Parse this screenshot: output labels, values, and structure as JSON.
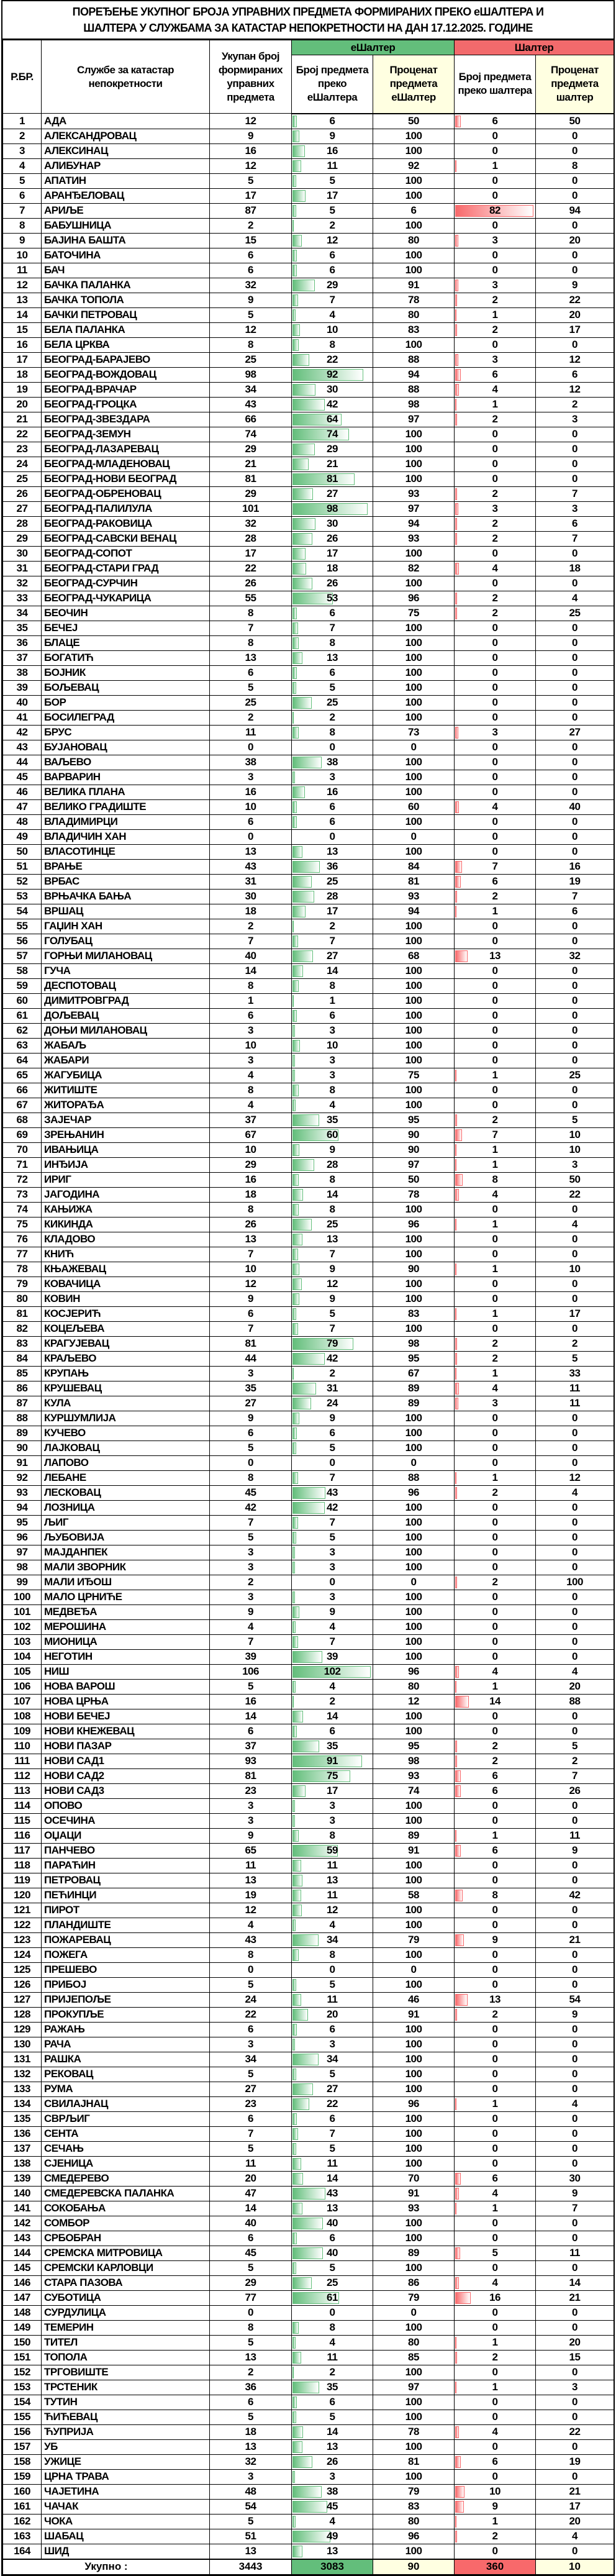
{
  "title": {
    "line1": "ПОРЕЂЕЊЕ УКУПНОГ БРОЈА УПРАВНИХ ПРЕДМЕТА ФОРМИРАНИХ ПРЕКО еШАЛТЕРА И",
    "line2": "ШАЛТЕРА У СЛУЖБАМА ЗА КАТАСТАР НЕПОКРЕТНОСТИ НА ДАН 17.12.2025. ГОДИНЕ"
  },
  "header": {
    "rb": "Р.БР.",
    "service": "Службе за катастар непокретности",
    "total": "Укупан број формираних управних предмета",
    "eshalter_group": "еШалтер",
    "shalter_group": "Шалтер",
    "e_count": "Број предмета преко еШалтера",
    "e_pct": "Проценат предмета еШалтер",
    "s_count": "Број предмета преко шалтера",
    "s_pct": "Проценат предмета шалтер"
  },
  "colors": {
    "eshalter": "#63be7b",
    "shalter": "#f8696b",
    "pct_bg": "#ffffe1"
  },
  "columns": [
    "rb",
    "service",
    "total",
    "e_count",
    "e_pct",
    "s_count",
    "s_pct"
  ],
  "rows": [
    [
      "1",
      "АДА",
      "12",
      "6",
      "50",
      "6",
      "50"
    ],
    [
      "2",
      "АЛЕКСАНДРОВАЦ",
      "9",
      "9",
      "100",
      "0",
      "0"
    ],
    [
      "3",
      "АЛЕКСИНАЦ",
      "16",
      "16",
      "100",
      "0",
      "0"
    ],
    [
      "4",
      "АЛИБУНАР",
      "12",
      "11",
      "92",
      "1",
      "8"
    ],
    [
      "5",
      "АПАТИН",
      "5",
      "5",
      "100",
      "0",
      "0"
    ],
    [
      "6",
      "АРАНЂЕЛОВАЦ",
      "17",
      "17",
      "100",
      "0",
      "0"
    ],
    [
      "7",
      "АРИЉЕ",
      "87",
      "5",
      "6",
      "82",
      "94"
    ],
    [
      "8",
      "БАБУШНИЦА",
      "2",
      "2",
      "100",
      "0",
      "0"
    ],
    [
      "9",
      "БАЈИНА БАШТА",
      "15",
      "12",
      "80",
      "3",
      "20"
    ],
    [
      "10",
      "БАТОЧИНА",
      "6",
      "6",
      "100",
      "0",
      "0"
    ],
    [
      "11",
      "БАЧ",
      "6",
      "6",
      "100",
      "0",
      "0"
    ],
    [
      "12",
      "БАЧКА ПАЛАНКА",
      "32",
      "29",
      "91",
      "3",
      "9"
    ],
    [
      "13",
      "БАЧКА ТОПОЛА",
      "9",
      "7",
      "78",
      "2",
      "22"
    ],
    [
      "14",
      "БАЧКИ ПЕТРОВАЦ",
      "5",
      "4",
      "80",
      "1",
      "20"
    ],
    [
      "15",
      "БЕЛА ПАЛАНКА",
      "12",
      "10",
      "83",
      "2",
      "17"
    ],
    [
      "16",
      "БЕЛА ЦРКВА",
      "8",
      "8",
      "100",
      "0",
      "0"
    ],
    [
      "17",
      "БЕОГРАД-БАРАЈЕВО",
      "25",
      "22",
      "88",
      "3",
      "12"
    ],
    [
      "18",
      "БЕОГРАД-ВОЖДОВАЦ",
      "98",
      "92",
      "94",
      "6",
      "6"
    ],
    [
      "19",
      "БЕОГРАД-ВРАЧАР",
      "34",
      "30",
      "88",
      "4",
      "12"
    ],
    [
      "20",
      "БЕОГРАД-ГРОЦКА",
      "43",
      "42",
      "98",
      "1",
      "2"
    ],
    [
      "21",
      "БЕОГРАД-ЗВЕЗДАРА",
      "66",
      "64",
      "97",
      "2",
      "3"
    ],
    [
      "22",
      "БЕОГРАД-ЗЕМУН",
      "74",
      "74",
      "100",
      "0",
      "0"
    ],
    [
      "23",
      "БЕОГРАД-ЛАЗАРЕВАЦ",
      "29",
      "29",
      "100",
      "0",
      "0"
    ],
    [
      "24",
      "БЕОГРАД-МЛАДЕНОВАЦ",
      "21",
      "21",
      "100",
      "0",
      "0"
    ],
    [
      "25",
      "БЕОГРАД-НОВИ БЕОГРАД",
      "81",
      "81",
      "100",
      "0",
      "0"
    ],
    [
      "26",
      "БЕОГРАД-ОБРЕНОВАЦ",
      "29",
      "27",
      "93",
      "2",
      "7"
    ],
    [
      "27",
      "БЕОГРАД-ПАЛИЛУЛА",
      "101",
      "98",
      "97",
      "3",
      "3"
    ],
    [
      "28",
      "БЕОГРАД-РАКОВИЦА",
      "32",
      "30",
      "94",
      "2",
      "6"
    ],
    [
      "29",
      "БЕОГРАД-САВСКИ ВЕНАЦ",
      "28",
      "26",
      "93",
      "2",
      "7"
    ],
    [
      "30",
      "БЕОГРАД-СОПОТ",
      "17",
      "17",
      "100",
      "0",
      "0"
    ],
    [
      "31",
      "БЕОГРАД-СТАРИ ГРАД",
      "22",
      "18",
      "82",
      "4",
      "18"
    ],
    [
      "32",
      "БЕОГРАД-СУРЧИН",
      "26",
      "26",
      "100",
      "0",
      "0"
    ],
    [
      "33",
      "БЕОГРАД-ЧУКАРИЦА",
      "55",
      "53",
      "96",
      "2",
      "4"
    ],
    [
      "34",
      "БЕОЧИН",
      "8",
      "6",
      "75",
      "2",
      "25"
    ],
    [
      "35",
      "БЕЧЕЈ",
      "7",
      "7",
      "100",
      "0",
      "0"
    ],
    [
      "36",
      "БЛАЦЕ",
      "8",
      "8",
      "100",
      "0",
      "0"
    ],
    [
      "37",
      "БОГАТИЋ",
      "13",
      "13",
      "100",
      "0",
      "0"
    ],
    [
      "38",
      "БОЈНИК",
      "6",
      "6",
      "100",
      "0",
      "0"
    ],
    [
      "39",
      "БОЉЕВАЦ",
      "5",
      "5",
      "100",
      "0",
      "0"
    ],
    [
      "40",
      "БОР",
      "25",
      "25",
      "100",
      "0",
      "0"
    ],
    [
      "41",
      "БОСИЛЕГРАД",
      "2",
      "2",
      "100",
      "0",
      "0"
    ],
    [
      "42",
      "БРУС",
      "11",
      "8",
      "73",
      "3",
      "27"
    ],
    [
      "43",
      "БУЈАНОВАЦ",
      "0",
      "0",
      "0",
      "0",
      "0"
    ],
    [
      "44",
      "ВАЉЕВО",
      "38",
      "38",
      "100",
      "0",
      "0"
    ],
    [
      "45",
      "ВАРВАРИН",
      "3",
      "3",
      "100",
      "0",
      "0"
    ],
    [
      "46",
      "ВЕЛИКА ПЛАНА",
      "16",
      "16",
      "100",
      "0",
      "0"
    ],
    [
      "47",
      "ВЕЛИКО ГРАДИШТЕ",
      "10",
      "6",
      "60",
      "4",
      "40"
    ],
    [
      "48",
      "ВЛАДИМИРЦИ",
      "6",
      "6",
      "100",
      "0",
      "0"
    ],
    [
      "49",
      "ВЛАДИЧИН ХАН",
      "0",
      "0",
      "0",
      "0",
      "0"
    ],
    [
      "50",
      "ВЛАСОТИНЦЕ",
      "13",
      "13",
      "100",
      "0",
      "0"
    ],
    [
      "51",
      "ВРАЊЕ",
      "43",
      "36",
      "84",
      "7",
      "16"
    ],
    [
      "52",
      "ВРБАС",
      "31",
      "25",
      "81",
      "6",
      "19"
    ],
    [
      "53",
      "ВРЊАЧКА БАЊА",
      "30",
      "28",
      "93",
      "2",
      "7"
    ],
    [
      "54",
      "ВРШАЦ",
      "18",
      "17",
      "94",
      "1",
      "6"
    ],
    [
      "55",
      "ГАЏИН ХАН",
      "2",
      "2",
      "100",
      "0",
      "0"
    ],
    [
      "56",
      "ГОЛУБАЦ",
      "7",
      "7",
      "100",
      "0",
      "0"
    ],
    [
      "57",
      "ГОРЊИ МИЛАНОВАЦ",
      "40",
      "27",
      "68",
      "13",
      "32"
    ],
    [
      "58",
      "ГУЧА",
      "14",
      "14",
      "100",
      "0",
      "0"
    ],
    [
      "59",
      "ДЕСПОТОВАЦ",
      "8",
      "8",
      "100",
      "0",
      "0"
    ],
    [
      "60",
      "ДИМИТРОВГРАД",
      "1",
      "1",
      "100",
      "0",
      "0"
    ],
    [
      "61",
      "ДОЉЕВАЦ",
      "6",
      "6",
      "100",
      "0",
      "0"
    ],
    [
      "62",
      "ДОЊИ МИЛАНОВАЦ",
      "3",
      "3",
      "100",
      "0",
      "0"
    ],
    [
      "63",
      "ЖАБАЉ",
      "10",
      "10",
      "100",
      "0",
      "0"
    ],
    [
      "64",
      "ЖАБАРИ",
      "3",
      "3",
      "100",
      "0",
      "0"
    ],
    [
      "65",
      "ЖАГУБИЦА",
      "4",
      "3",
      "75",
      "1",
      "25"
    ],
    [
      "66",
      "ЖИТИШТЕ",
      "8",
      "8",
      "100",
      "0",
      "0"
    ],
    [
      "67",
      "ЖИТОРАЂА",
      "4",
      "4",
      "100",
      "0",
      "0"
    ],
    [
      "68",
      "ЗАЈЕЧАР",
      "37",
      "35",
      "95",
      "2",
      "5"
    ],
    [
      "69",
      "ЗРЕЊАНИН",
      "67",
      "60",
      "90",
      "7",
      "10"
    ],
    [
      "70",
      "ИВАЊИЦА",
      "10",
      "9",
      "90",
      "1",
      "10"
    ],
    [
      "71",
      "ИНЂИЈА",
      "29",
      "28",
      "97",
      "1",
      "3"
    ],
    [
      "72",
      "ИРИГ",
      "16",
      "8",
      "50",
      "8",
      "50"
    ],
    [
      "73",
      "ЈАГОДИНА",
      "18",
      "14",
      "78",
      "4",
      "22"
    ],
    [
      "74",
      "КАЊИЖА",
      "8",
      "8",
      "100",
      "0",
      "0"
    ],
    [
      "75",
      "КИКИНДА",
      "26",
      "25",
      "96",
      "1",
      "4"
    ],
    [
      "76",
      "КЛАДОВО",
      "13",
      "13",
      "100",
      "0",
      "0"
    ],
    [
      "77",
      "КНИЋ",
      "7",
      "7",
      "100",
      "0",
      "0"
    ],
    [
      "78",
      "КЊАЖЕВАЦ",
      "10",
      "9",
      "90",
      "1",
      "10"
    ],
    [
      "79",
      "КОВАЧИЦА",
      "12",
      "12",
      "100",
      "0",
      "0"
    ],
    [
      "80",
      "КОВИН",
      "9",
      "9",
      "100",
      "0",
      "0"
    ],
    [
      "81",
      "КОСЈЕРИЋ",
      "6",
      "5",
      "83",
      "1",
      "17"
    ],
    [
      "82",
      "КОЦЕЉЕВА",
      "7",
      "7",
      "100",
      "0",
      "0"
    ],
    [
      "83",
      "КРАГУЈЕВАЦ",
      "81",
      "79",
      "98",
      "2",
      "2"
    ],
    [
      "84",
      "КРАЉЕВО",
      "44",
      "42",
      "95",
      "2",
      "5"
    ],
    [
      "85",
      "КРУПАЊ",
      "3",
      "2",
      "67",
      "1",
      "33"
    ],
    [
      "86",
      "КРУШЕВАЦ",
      "35",
      "31",
      "89",
      "4",
      "11"
    ],
    [
      "87",
      "КУЛА",
      "27",
      "24",
      "89",
      "3",
      "11"
    ],
    [
      "88",
      "КУРШУМЛИЈА",
      "9",
      "9",
      "100",
      "0",
      "0"
    ],
    [
      "89",
      "КУЧЕВО",
      "6",
      "6",
      "100",
      "0",
      "0"
    ],
    [
      "90",
      "ЛАЈКОВАЦ",
      "5",
      "5",
      "100",
      "0",
      "0"
    ],
    [
      "91",
      "ЛАПОВО",
      "0",
      "0",
      "0",
      "0",
      "0"
    ],
    [
      "92",
      "ЛЕБАНЕ",
      "8",
      "7",
      "88",
      "1",
      "12"
    ],
    [
      "93",
      "ЛЕСКОВАЦ",
      "45",
      "43",
      "96",
      "2",
      "4"
    ],
    [
      "94",
      "ЛОЗНИЦА",
      "42",
      "42",
      "100",
      "0",
      "0"
    ],
    [
      "95",
      "ЉИГ",
      "7",
      "7",
      "100",
      "0",
      "0"
    ],
    [
      "96",
      "ЉУБОВИЈА",
      "5",
      "5",
      "100",
      "0",
      "0"
    ],
    [
      "97",
      "МАЈДАНПЕК",
      "3",
      "3",
      "100",
      "0",
      "0"
    ],
    [
      "98",
      "МАЛИ ЗВОРНИК",
      "3",
      "3",
      "100",
      "0",
      "0"
    ],
    [
      "99",
      "МАЛИ ИЂОШ",
      "2",
      "0",
      "0",
      "2",
      "100"
    ],
    [
      "100",
      "МАЛО ЦРНИЋЕ",
      "3",
      "3",
      "100",
      "0",
      "0"
    ],
    [
      "101",
      "МЕДВЕЂА",
      "9",
      "9",
      "100",
      "0",
      "0"
    ],
    [
      "102",
      "МЕРОШИНА",
      "4",
      "4",
      "100",
      "0",
      "0"
    ],
    [
      "103",
      "МИОНИЦА",
      "7",
      "7",
      "100",
      "0",
      "0"
    ],
    [
      "104",
      "НЕГОТИН",
      "39",
      "39",
      "100",
      "0",
      "0"
    ],
    [
      "105",
      "НИШ",
      "106",
      "102",
      "96",
      "4",
      "4"
    ],
    [
      "106",
      "НОВА ВАРОШ",
      "5",
      "4",
      "80",
      "1",
      "20"
    ],
    [
      "107",
      "НОВА ЦРЊА",
      "16",
      "2",
      "12",
      "14",
      "88"
    ],
    [
      "108",
      "НОВИ БЕЧЕЈ",
      "14",
      "14",
      "100",
      "0",
      "0"
    ],
    [
      "109",
      "НОВИ КНЕЖЕВАЦ",
      "6",
      "6",
      "100",
      "0",
      "0"
    ],
    [
      "110",
      "НОВИ ПАЗАР",
      "37",
      "35",
      "95",
      "2",
      "5"
    ],
    [
      "111",
      "НОВИ САД1",
      "93",
      "91",
      "98",
      "2",
      "2"
    ],
    [
      "112",
      "НОВИ САД2",
      "81",
      "75",
      "93",
      "6",
      "7"
    ],
    [
      "113",
      "НОВИ САД3",
      "23",
      "17",
      "74",
      "6",
      "26"
    ],
    [
      "114",
      "ОПОВО",
      "3",
      "3",
      "100",
      "0",
      "0"
    ],
    [
      "115",
      "ОСЕЧИНА",
      "3",
      "3",
      "100",
      "0",
      "0"
    ],
    [
      "116",
      "ОЏАЦИ",
      "9",
      "8",
      "89",
      "1",
      "11"
    ],
    [
      "117",
      "ПАНЧЕВО",
      "65",
      "59",
      "91",
      "6",
      "9"
    ],
    [
      "118",
      "ПАРАЋИН",
      "11",
      "11",
      "100",
      "0",
      "0"
    ],
    [
      "119",
      "ПЕТРОВАЦ",
      "13",
      "13",
      "100",
      "0",
      "0"
    ],
    [
      "120",
      "ПЕЋИНЦИ",
      "19",
      "11",
      "58",
      "8",
      "42"
    ],
    [
      "121",
      "ПИРОТ",
      "12",
      "12",
      "100",
      "0",
      "0"
    ],
    [
      "122",
      "ПЛАНДИШТЕ",
      "4",
      "4",
      "100",
      "0",
      "0"
    ],
    [
      "123",
      "ПОЖАРЕВАЦ",
      "43",
      "34",
      "79",
      "9",
      "21"
    ],
    [
      "124",
      "ПОЖЕГА",
      "8",
      "8",
      "100",
      "0",
      "0"
    ],
    [
      "125",
      "ПРЕШЕВО",
      "0",
      "0",
      "0",
      "0",
      "0"
    ],
    [
      "126",
      "ПРИБОЈ",
      "5",
      "5",
      "100",
      "0",
      "0"
    ],
    [
      "127",
      "ПРИЈЕПОЉЕ",
      "24",
      "11",
      "46",
      "13",
      "54"
    ],
    [
      "128",
      "ПРОКУПЉЕ",
      "22",
      "20",
      "91",
      "2",
      "9"
    ],
    [
      "129",
      "РАЖАЊ",
      "6",
      "6",
      "100",
      "0",
      "0"
    ],
    [
      "130",
      "РАЧА",
      "3",
      "3",
      "100",
      "0",
      "0"
    ],
    [
      "131",
      "РАШКА",
      "34",
      "34",
      "100",
      "0",
      "0"
    ],
    [
      "132",
      "РЕКОВАЦ",
      "5",
      "5",
      "100",
      "0",
      "0"
    ],
    [
      "133",
      "РУМА",
      "27",
      "27",
      "100",
      "0",
      "0"
    ],
    [
      "134",
      "СВИЛАЈНАЦ",
      "23",
      "22",
      "96",
      "1",
      "4"
    ],
    [
      "135",
      "СВРЉИГ",
      "6",
      "6",
      "100",
      "0",
      "0"
    ],
    [
      "136",
      "СЕНТА",
      "7",
      "7",
      "100",
      "0",
      "0"
    ],
    [
      "137",
      "СЕЧАЊ",
      "5",
      "5",
      "100",
      "0",
      "0"
    ],
    [
      "138",
      "СЈЕНИЦА",
      "11",
      "11",
      "100",
      "0",
      "0"
    ],
    [
      "139",
      "СМЕДЕРЕВО",
      "20",
      "14",
      "70",
      "6",
      "30"
    ],
    [
      "140",
      "СМЕДЕРЕВСКА ПАЛАНКА",
      "47",
      "43",
      "91",
      "4",
      "9"
    ],
    [
      "141",
      "СОКОБАЊА",
      "14",
      "13",
      "93",
      "1",
      "7"
    ],
    [
      "142",
      "СОМБОР",
      "40",
      "40",
      "100",
      "0",
      "0"
    ],
    [
      "143",
      "СРБОБРАН",
      "6",
      "6",
      "100",
      "0",
      "0"
    ],
    [
      "144",
      "СРЕМСКА МИТРОВИЦА",
      "45",
      "40",
      "89",
      "5",
      "11"
    ],
    [
      "145",
      "СРЕМСКИ КАРЛОВЦИ",
      "5",
      "5",
      "100",
      "0",
      "0"
    ],
    [
      "146",
      "СТАРА ПАЗОВА",
      "29",
      "25",
      "86",
      "4",
      "14"
    ],
    [
      "147",
      "СУБОТИЦА",
      "77",
      "61",
      "79",
      "16",
      "21"
    ],
    [
      "148",
      "СУРДУЛИЦА",
      "0",
      "0",
      "0",
      "0",
      "0"
    ],
    [
      "149",
      "ТЕМЕРИН",
      "8",
      "8",
      "100",
      "0",
      "0"
    ],
    [
      "150",
      "ТИТЕЛ",
      "5",
      "4",
      "80",
      "1",
      "20"
    ],
    [
      "151",
      "ТОПОЛА",
      "13",
      "11",
      "85",
      "2",
      "15"
    ],
    [
      "152",
      "ТРГОВИШТЕ",
      "2",
      "2",
      "100",
      "0",
      "0"
    ],
    [
      "153",
      "ТРСТЕНИК",
      "36",
      "35",
      "97",
      "1",
      "3"
    ],
    [
      "154",
      "ТУТИН",
      "6",
      "6",
      "100",
      "0",
      "0"
    ],
    [
      "155",
      "ЋИЋЕВАЦ",
      "5",
      "5",
      "100",
      "0",
      "0"
    ],
    [
      "156",
      "ЋУПРИЈА",
      "18",
      "14",
      "78",
      "4",
      "22"
    ],
    [
      "157",
      "УБ",
      "13",
      "13",
      "100",
      "0",
      "0"
    ],
    [
      "158",
      "УЖИЦЕ",
      "32",
      "26",
      "81",
      "6",
      "19"
    ],
    [
      "159",
      "ЦРНА ТРАВА",
      "3",
      "3",
      "100",
      "0",
      "0"
    ],
    [
      "160",
      "ЧАЈЕТИНА",
      "48",
      "38",
      "79",
      "10",
      "21"
    ],
    [
      "161",
      "ЧАЧАК",
      "54",
      "45",
      "83",
      "9",
      "17"
    ],
    [
      "162",
      "ЧОКА",
      "5",
      "4",
      "80",
      "1",
      "20"
    ],
    [
      "163",
      "ШАБАЦ",
      "51",
      "49",
      "96",
      "2",
      "4"
    ],
    [
      "164",
      "ШИД",
      "13",
      "13",
      "100",
      "0",
      "0"
    ]
  ],
  "totals": {
    "label": "Укупно :",
    "total": "3443",
    "e_count": "3083",
    "e_pct": "90",
    "s_count": "360",
    "s_pct": "10"
  }
}
